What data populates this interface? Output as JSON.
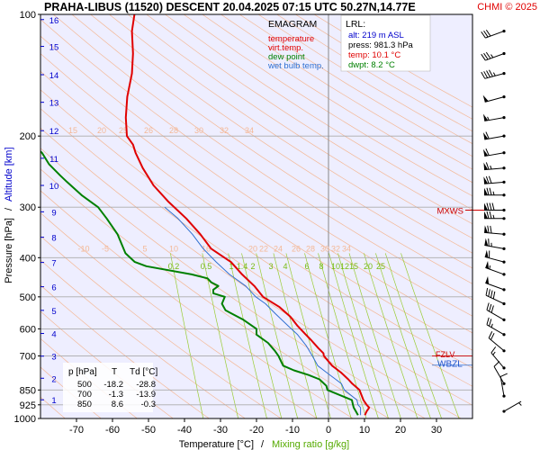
{
  "header": {
    "station_title": "PRAHA-LIBUS (11520)   DESCENT   20.04.2025 07:15 UTC  50.27N,14.77E",
    "copyright": "CHMI © 2025"
  },
  "legend": {
    "title": "EMAGRAM",
    "items": [
      {
        "label": "temperature",
        "color": "#e00000"
      },
      {
        "label": "virt.temp.",
        "color": "#e00000"
      },
      {
        "label": "dew point",
        "color": "#008000"
      },
      {
        "label": "wet bulb temp.",
        "color": "#3070d0"
      }
    ]
  },
  "lrl_box": {
    "title": "LRL:",
    "lines": [
      {
        "text": "alt: 219 m ASL",
        "color": "#0000cc"
      },
      {
        "text": "press: 981.3 hPa",
        "color": "#000000"
      },
      {
        "text": "temp: 10.1 °C",
        "color": "#e00000"
      },
      {
        "text": "dwpt: 8.2 °C",
        "color": "#008000"
      }
    ]
  },
  "table": {
    "headers": [
      "p [hPa]",
      "T",
      "Td [°C]"
    ],
    "rows": [
      [
        "500",
        "-18.2",
        "-28.8"
      ],
      [
        "700",
        "-1.3",
        "-13.9"
      ],
      [
        "850",
        "8.6",
        "-0.3"
      ]
    ]
  },
  "level_marks": {
    "mxws": "MXWS",
    "fzlv": "FZLV",
    "wbzl": "WBZL"
  },
  "colors": {
    "temperature": "#e00000",
    "dewpoint": "#008000",
    "wetbulb": "#3070d0",
    "dry_adiabat": "#f4b896",
    "mixing_ratio": "#99cc33",
    "grid": "#aaaaaa",
    "background": "#eeeeff",
    "height_axis": "#0000cc"
  },
  "chart_data": {
    "type": "line",
    "xlabel": "Temperature [°C]",
    "xlabel_secondary": "Mixing ratio [g/kg]",
    "ylabel": "Pressure [hPa]",
    "ylabel_secondary": "Altitude [km]",
    "y_scale": "log",
    "xlim": [
      -80,
      40
    ],
    "ylim": [
      1000,
      100
    ],
    "x_ticks": [
      -70,
      -60,
      -50,
      -40,
      -30,
      -20,
      -10,
      0,
      10,
      20,
      30
    ],
    "y_ticks": [
      100,
      200,
      300,
      400,
      500,
      600,
      700,
      850,
      925,
      1000
    ],
    "altitude_ticks": [
      {
        "km": "1",
        "p": 899
      },
      {
        "km": "2",
        "p": 795
      },
      {
        "km": "3",
        "p": 701
      },
      {
        "km": "4",
        "p": 616
      },
      {
        "km": "5",
        "p": 540
      },
      {
        "km": "6",
        "p": 472
      },
      {
        "km": "7",
        "p": 411
      },
      {
        "km": "8",
        "p": 356
      },
      {
        "km": "9",
        "p": 308
      },
      {
        "km": "10",
        "p": 265
      },
      {
        "km": "11",
        "p": 227
      },
      {
        "km": "12",
        "p": 194
      },
      {
        "km": "13",
        "p": 165
      },
      {
        "km": "14",
        "p": 141
      },
      {
        "km": "15",
        "p": 120
      },
      {
        "km": "16",
        "p": 103
      }
    ],
    "dry_adiabat_labels_upper": {
      "p": 200,
      "values": [
        "15",
        "20",
        "25",
        "26",
        "28",
        "30",
        "32",
        "34"
      ],
      "x": [
        -71,
        -63,
        -57,
        -50,
        -43,
        -36,
        -29,
        -22
      ]
    },
    "dry_adiabat_labels_lower": {
      "p": 380,
      "values": [
        "-10",
        "-5",
        "5",
        "10",
        "16",
        "20",
        "22",
        "24",
        "26",
        "28",
        "30",
        "32",
        "34"
      ],
      "x": [
        -68,
        -62,
        -51,
        -43,
        -34,
        -21,
        -18,
        -14,
        -9,
        -5,
        -1,
        2,
        5
      ]
    },
    "mixing_ratio_labels": {
      "p": 420,
      "values": [
        "0.2",
        "0.5",
        "1",
        "1.4",
        "2",
        "3",
        "4",
        "6",
        "8",
        "10",
        "12",
        "15",
        "20",
        "25"
      ],
      "x": [
        -43,
        -34,
        -27,
        -24,
        -21,
        -16,
        -12,
        -6,
        -2,
        2,
        4.5,
        7,
        11,
        14.5
      ]
    },
    "series": [
      {
        "name": "temperature",
        "points": [
          [
            10.1,
            981
          ],
          [
            10.6,
            960
          ],
          [
            11.3,
            940
          ],
          [
            10.6,
            925
          ],
          [
            9.7,
            900
          ],
          [
            8.6,
            850
          ],
          [
            6.6,
            820
          ],
          [
            5.5,
            800
          ],
          [
            3.5,
            770
          ],
          [
            1.0,
            740
          ],
          [
            -1.3,
            700
          ],
          [
            -1.4,
            690
          ],
          [
            -2.8,
            670
          ],
          [
            -4.8,
            640
          ],
          [
            -6.3,
            620
          ],
          [
            -8.6,
            590
          ],
          [
            -10.6,
            560
          ],
          [
            -13.6,
            530
          ],
          [
            -18.2,
            500
          ],
          [
            -20.6,
            470
          ],
          [
            -24.0,
            440
          ],
          [
            -27.1,
            410
          ],
          [
            -32.6,
            380
          ],
          [
            -35.6,
            350
          ],
          [
            -39.5,
            320
          ],
          [
            -44.6,
            290
          ],
          [
            -48.6,
            265
          ],
          [
            -51.6,
            240
          ],
          [
            -53.6,
            220
          ],
          [
            -54.3,
            210
          ],
          [
            -56.0,
            200
          ],
          [
            -56.3,
            180
          ],
          [
            -55.9,
            160
          ],
          [
            -54.6,
            140
          ],
          [
            -54.3,
            125
          ],
          [
            -54.6,
            110
          ],
          [
            -53.9,
            100
          ]
        ]
      },
      {
        "name": "dew point",
        "points": [
          [
            8.2,
            981
          ],
          [
            7.6,
            960
          ],
          [
            7.0,
            940
          ],
          [
            6.8,
            925
          ],
          [
            6.5,
            900
          ],
          [
            -0.3,
            850
          ],
          [
            -0.6,
            830
          ],
          [
            -2.5,
            800
          ],
          [
            -5.6,
            780
          ],
          [
            -9.6,
            760
          ],
          [
            -12.6,
            740
          ],
          [
            -13.9,
            700
          ],
          [
            -14.9,
            680
          ],
          [
            -16.8,
            650
          ],
          [
            -20.0,
            620
          ],
          [
            -20.0,
            600
          ],
          [
            -23.6,
            570
          ],
          [
            -28.6,
            540
          ],
          [
            -29.6,
            520
          ],
          [
            -28.8,
            500
          ],
          [
            -32.0,
            490
          ],
          [
            -32.0,
            480
          ],
          [
            -30.6,
            470
          ],
          [
            -32.6,
            460
          ],
          [
            -33.6,
            450
          ],
          [
            -38.0,
            440
          ],
          [
            -50.6,
            420
          ],
          [
            -53.8,
            410
          ],
          [
            -56.4,
            390
          ],
          [
            -58.6,
            350
          ],
          [
            -61.6,
            320
          ],
          [
            -64.0,
            300
          ],
          [
            -68.6,
            280
          ],
          [
            -72.6,
            260
          ],
          [
            -74.6,
            250
          ],
          [
            -77.6,
            235
          ],
          [
            -79.6,
            220
          ],
          [
            -85.0,
            200
          ]
        ]
      },
      {
        "name": "wet bulb temp.",
        "points": [
          [
            8.9,
            981
          ],
          [
            8.9,
            960
          ],
          [
            8.9,
            940
          ],
          [
            8.2,
            925
          ],
          [
            7.9,
            900
          ],
          [
            4.4,
            850
          ],
          [
            3.6,
            820
          ],
          [
            2.0,
            800
          ],
          [
            -0.5,
            770
          ],
          [
            -3.0,
            740
          ],
          [
            -4.5,
            700
          ],
          [
            -6.2,
            660
          ],
          [
            -8.6,
            620
          ],
          [
            -11.2,
            590
          ],
          [
            -14.8,
            550
          ],
          [
            -17.5,
            520
          ],
          [
            -20.2,
            500
          ],
          [
            -23.0,
            470
          ],
          [
            -27.5,
            440
          ],
          [
            -31.2,
            410
          ],
          [
            -34.8,
            380
          ],
          [
            -37.8,
            350
          ],
          [
            -41.8,
            320
          ],
          [
            -45.5,
            300
          ]
        ]
      }
    ],
    "wind_barbs": [
      {
        "p": 110,
        "dir": 250,
        "speed": 30
      },
      {
        "p": 125,
        "dir": 250,
        "speed": 35
      },
      {
        "p": 140,
        "dir": 255,
        "speed": 45
      },
      {
        "p": 160,
        "dir": 255,
        "speed": 50
      },
      {
        "p": 180,
        "dir": 260,
        "speed": 55
      },
      {
        "p": 200,
        "dir": 260,
        "speed": 60
      },
      {
        "p": 220,
        "dir": 260,
        "speed": 60
      },
      {
        "p": 240,
        "dir": 265,
        "speed": 65
      },
      {
        "p": 260,
        "dir": 265,
        "speed": 70
      },
      {
        "p": 280,
        "dir": 270,
        "speed": 75
      },
      {
        "p": 305,
        "dir": 270,
        "speed": 80
      },
      {
        "p": 320,
        "dir": 270,
        "speed": 75
      },
      {
        "p": 350,
        "dir": 275,
        "speed": 70
      },
      {
        "p": 380,
        "dir": 280,
        "speed": 65
      },
      {
        "p": 410,
        "dir": 285,
        "speed": 60
      },
      {
        "p": 440,
        "dir": 290,
        "speed": 55
      },
      {
        "p": 480,
        "dir": 290,
        "speed": 50
      },
      {
        "p": 520,
        "dir": 295,
        "speed": 40
      },
      {
        "p": 570,
        "dir": 300,
        "speed": 30
      },
      {
        "p": 620,
        "dir": 300,
        "speed": 25
      },
      {
        "p": 680,
        "dir": 310,
        "speed": 20
      },
      {
        "p": 750,
        "dir": 320,
        "speed": 15
      },
      {
        "p": 820,
        "dir": 330,
        "speed": 12
      },
      {
        "p": 880,
        "dir": 350,
        "speed": 10
      },
      {
        "p": 960,
        "dir": 60,
        "speed": 5
      }
    ]
  }
}
